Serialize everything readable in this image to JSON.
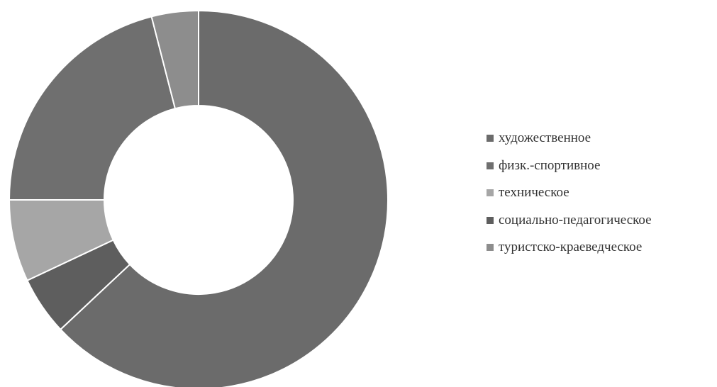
{
  "chart_data": {
    "type": "pie",
    "hole": true,
    "categories": [
      "художественное",
      "физк.-спортивное",
      "техническое",
      "социально-педагогическое",
      "туристско-краеведческое"
    ],
    "values": [
      63,
      21,
      7,
      5,
      4
    ],
    "colors": [
      "#6b6b6b",
      "#6f6f6f",
      "#a6a6a6",
      "#5e5e5e",
      "#8d8d8d"
    ],
    "slice_order": [
      0,
      3,
      2,
      1,
      4
    ],
    "legend_position": "right",
    "title": ""
  }
}
